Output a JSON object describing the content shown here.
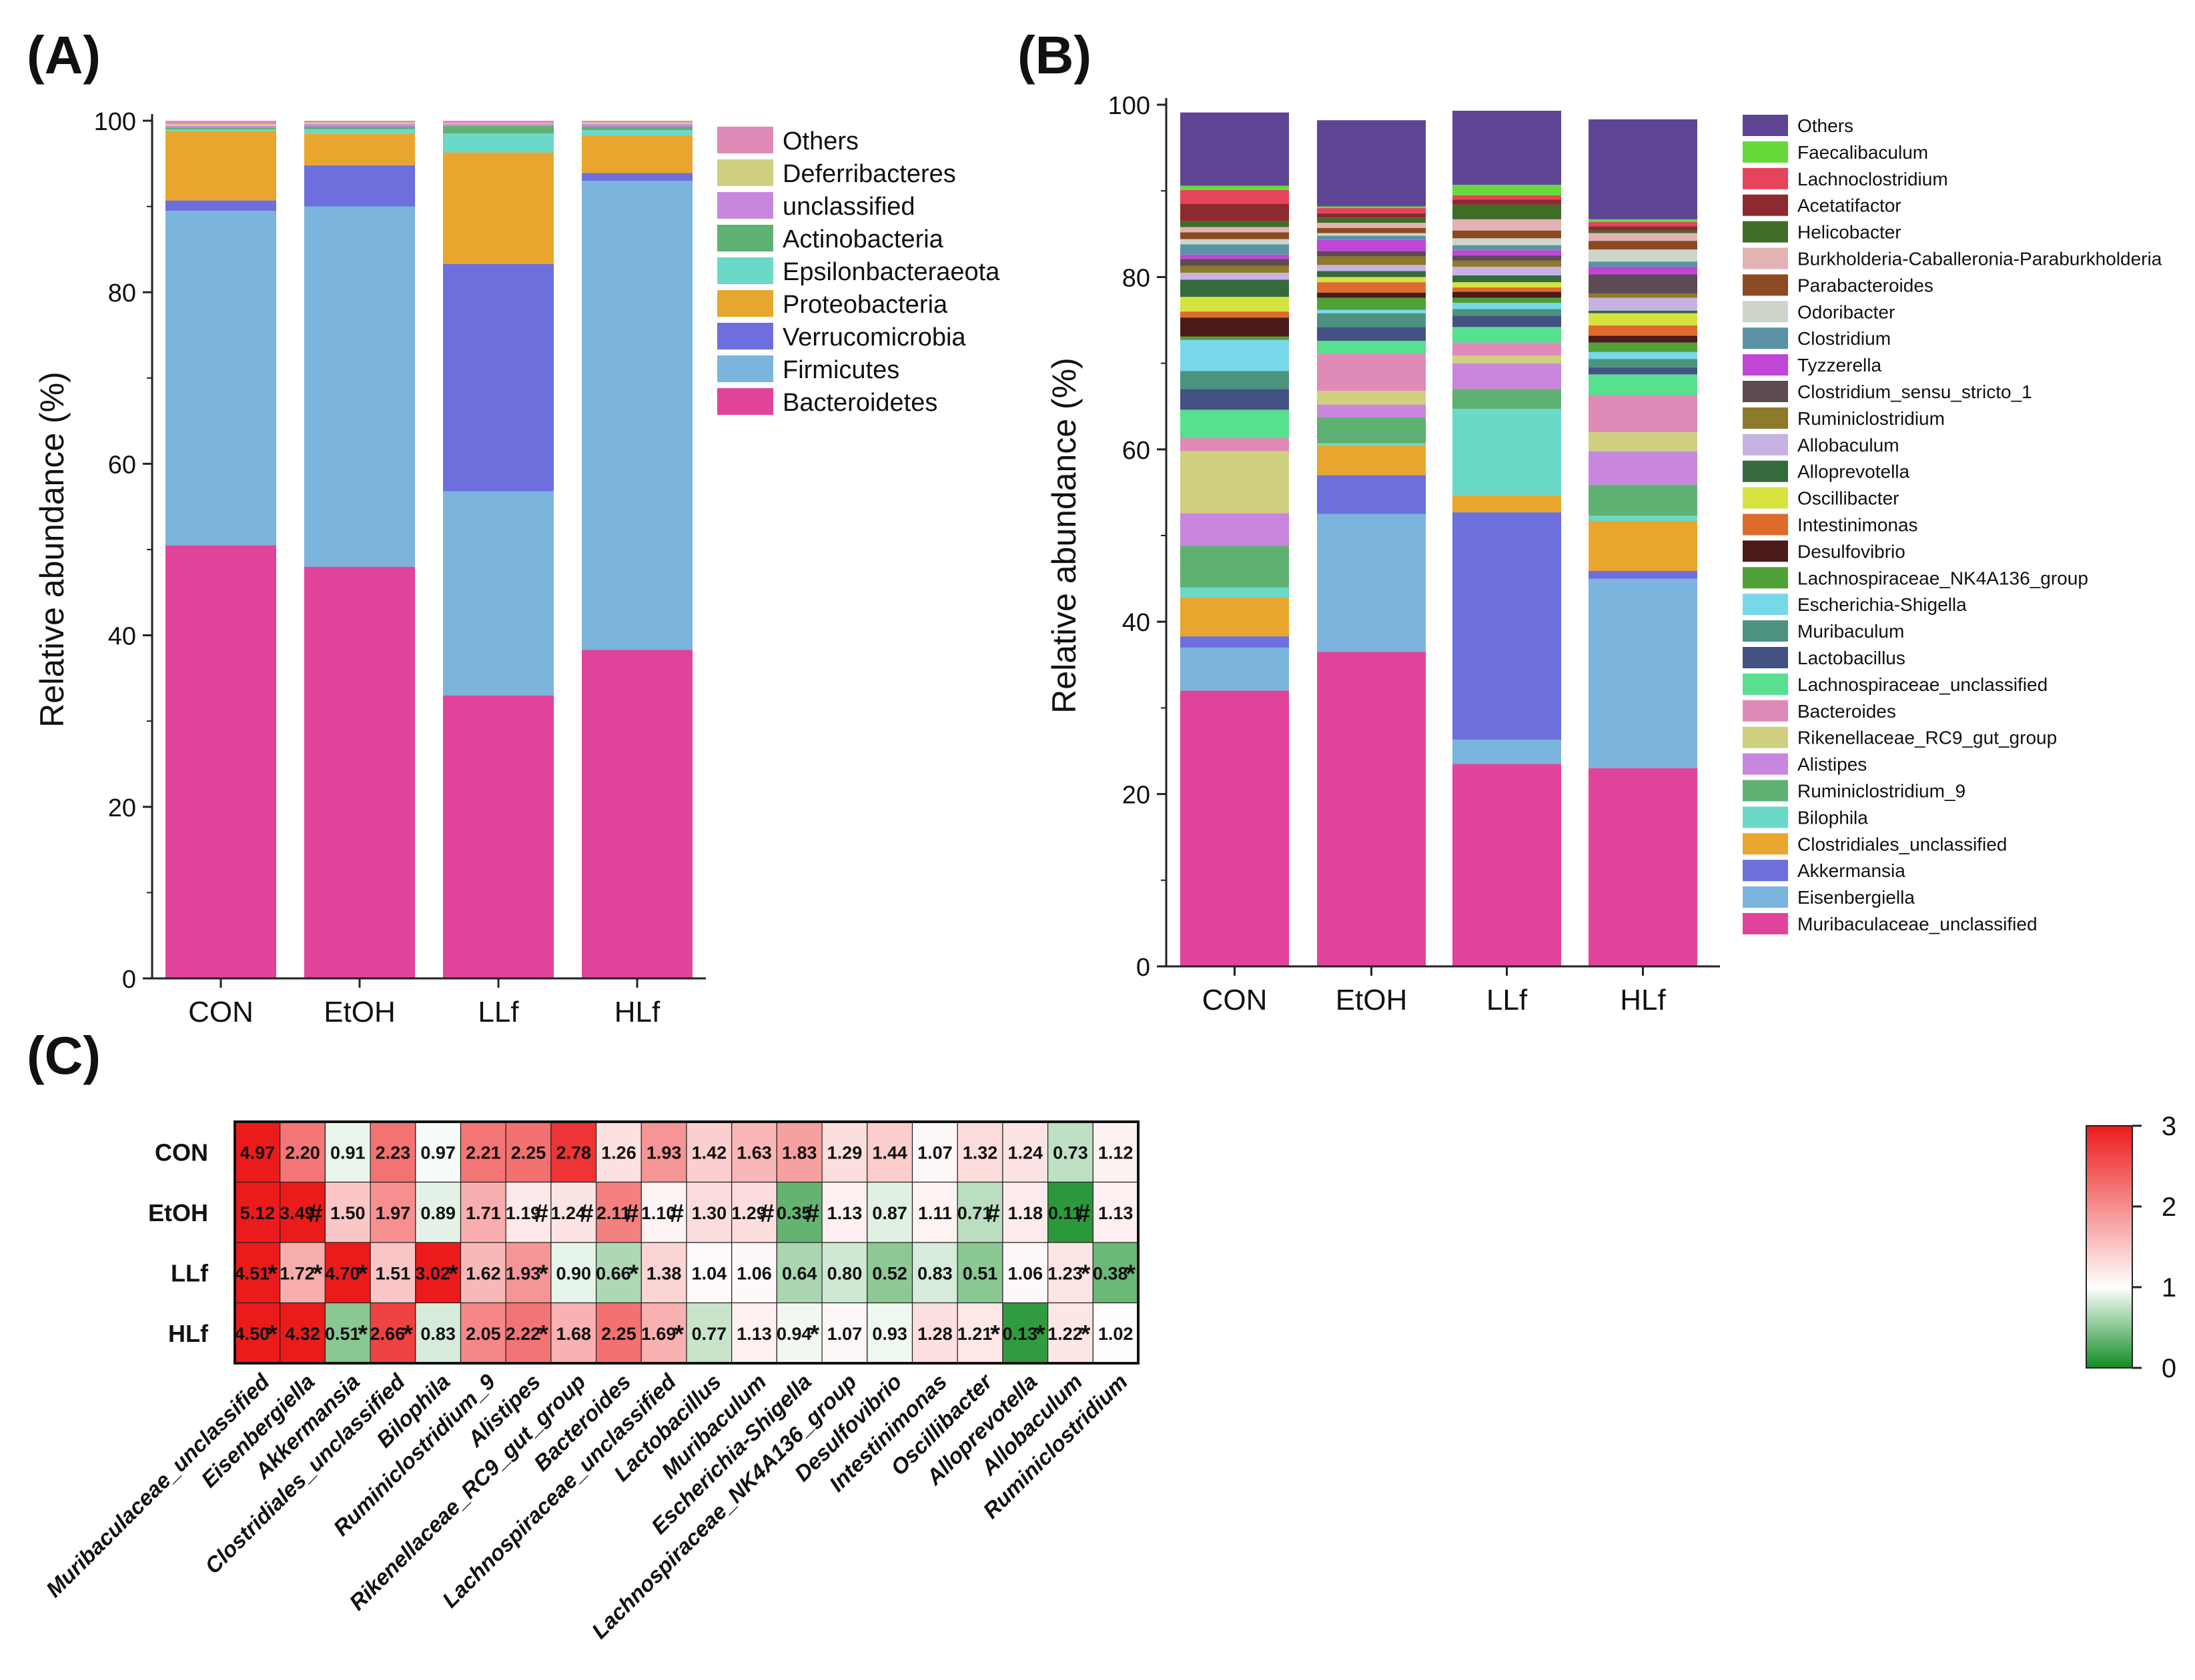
{
  "panels": {
    "a": "(A)",
    "b": "(B)",
    "c": "(C)"
  },
  "chart_data": [
    {
      "type": "bar",
      "stacked": true,
      "title": "(A)",
      "ylabel": "Relative abundance (%)",
      "xlabel": "",
      "ylim": [
        0,
        100
      ],
      "yticks": [
        0,
        20,
        40,
        60,
        80,
        100
      ],
      "categories": [
        "CON",
        "EtOH",
        "LLf",
        "HLf"
      ],
      "legend_position": "right",
      "series": [
        {
          "name": "Bacteroidetes",
          "color": "#e0449a",
          "values": [
            50.5,
            48.0,
            33.0,
            38.3
          ]
        },
        {
          "name": "Firmicutes",
          "color": "#7bb4dc",
          "values": [
            39.0,
            42.0,
            23.8,
            54.7
          ]
        },
        {
          "name": "Verrucomicrobia",
          "color": "#6d6fdc",
          "values": [
            1.2,
            4.8,
            26.5,
            0.9
          ]
        },
        {
          "name": "Proteobacteria",
          "color": "#e9a62e",
          "values": [
            8.1,
            3.7,
            13.0,
            4.4
          ]
        },
        {
          "name": "Epsilonbacteraeota",
          "color": "#6ad9c7",
          "values": [
            0.2,
            0.5,
            2.2,
            0.6
          ]
        },
        {
          "name": "Actinobacteria",
          "color": "#5fb073",
          "values": [
            0.2,
            0.3,
            0.9,
            0.4
          ]
        },
        {
          "name": "unclassified",
          "color": "#c986dd",
          "values": [
            0.2,
            0.3,
            0.2,
            0.3
          ]
        },
        {
          "name": "Deferribacteres",
          "color": "#cfd080",
          "values": [
            0.2,
            0.2,
            0.1,
            0.2
          ]
        },
        {
          "name": "Others",
          "color": "#e08ab8",
          "values": [
            0.4,
            0.2,
            0.3,
            0.2
          ]
        }
      ]
    },
    {
      "type": "bar",
      "stacked": true,
      "title": "(B)",
      "ylabel": "Relative abundance (%)",
      "xlabel": "",
      "ylim": [
        0,
        100
      ],
      "yticks": [
        0,
        20,
        40,
        60,
        80,
        100
      ],
      "categories": [
        "CON",
        "EtOH",
        "LLf",
        "HLf"
      ],
      "legend_position": "right",
      "series": [
        {
          "name": "Muribaculaceae_unclassified",
          "color": "#e0449a",
          "values": [
            32.0,
            36.5,
            23.5,
            23.0
          ]
        },
        {
          "name": "Eisenbergiella",
          "color": "#7bb4dc",
          "values": [
            5.0,
            16.0,
            2.8,
            22.0
          ]
        },
        {
          "name": "Akkermansia",
          "color": "#6d6fdc",
          "values": [
            1.3,
            4.5,
            26.4,
            0.9
          ]
        },
        {
          "name": "Clostridiales_unclassified",
          "color": "#e9a62e",
          "values": [
            4.5,
            3.5,
            2.0,
            5.8
          ]
        },
        {
          "name": "Bilophila",
          "color": "#6ad9c7",
          "values": [
            1.2,
            0.2,
            10.0,
            0.6
          ]
        },
        {
          "name": "Ruminiclostridium_9",
          "color": "#5fb073",
          "values": [
            4.8,
            3.0,
            2.3,
            3.6
          ]
        },
        {
          "name": "Alistipes",
          "color": "#c986dd",
          "values": [
            3.8,
            1.5,
            3.0,
            3.9
          ]
        },
        {
          "name": "Rikenellaceae_RC9_gut_group",
          "color": "#cfd080",
          "values": [
            7.2,
            1.6,
            0.9,
            2.2
          ]
        },
        {
          "name": "Bacteroides",
          "color": "#e08ab8",
          "values": [
            1.5,
            4.3,
            1.5,
            4.3
          ]
        },
        {
          "name": "Lachnospiraceae_unclassified",
          "color": "#56e08f",
          "values": [
            3.3,
            1.5,
            1.8,
            2.4
          ]
        },
        {
          "name": "Lactobacillus",
          "color": "#435183",
          "values": [
            2.4,
            1.6,
            1.3,
            0.8
          ]
        },
        {
          "name": "Muribaculum",
          "color": "#4b937f",
          "values": [
            2.1,
            1.6,
            0.8,
            1.0
          ]
        },
        {
          "name": "Escherichia-Shigella",
          "color": "#77d8ea",
          "values": [
            3.6,
            0.4,
            0.7,
            0.8
          ]
        },
        {
          "name": "Lachnospiraceae_NK4A136_group",
          "color": "#4fa037",
          "values": [
            0.4,
            1.4,
            0.6,
            1.1
          ]
        },
        {
          "name": "Desulfovibrio",
          "color": "#4b1b1b",
          "values": [
            2.2,
            0.6,
            0.7,
            0.8
          ]
        },
        {
          "name": "Intestinimonas",
          "color": "#de6b2b",
          "values": [
            0.7,
            1.2,
            0.5,
            1.2
          ]
        },
        {
          "name": "Oscillibacter",
          "color": "#d6e240",
          "values": [
            1.7,
            0.6,
            0.6,
            1.4
          ]
        },
        {
          "name": "Alloprevotella",
          "color": "#356a3c",
          "values": [
            2.0,
            0.7,
            0.8,
            0.3
          ]
        },
        {
          "name": "Allobaculum",
          "color": "#c7b2e4",
          "values": [
            0.8,
            0.7,
            1.0,
            1.5
          ]
        },
        {
          "name": "Ruminiclostridium",
          "color": "#8d7a2a",
          "values": [
            0.8,
            1.0,
            0.7,
            0.5
          ]
        },
        {
          "name": "Clostridium_sensu_stricto_1",
          "color": "#5d4a53",
          "values": [
            0.8,
            0.6,
            0.6,
            2.2
          ]
        },
        {
          "name": "Tyzzerella",
          "color": "#c046d6",
          "values": [
            0.5,
            1.3,
            0.6,
            0.9
          ]
        },
        {
          "name": "Clostridium",
          "color": "#5a93a4",
          "values": [
            1.2,
            0.5,
            0.6,
            0.6
          ]
        },
        {
          "name": "Odoribacter",
          "color": "#cdd5cb",
          "values": [
            0.6,
            0.3,
            0.8,
            1.4
          ]
        },
        {
          "name": "Parabacteroides",
          "color": "#8a4b22",
          "values": [
            0.8,
            0.6,
            0.9,
            1.0
          ]
        },
        {
          "name": "Burkholderia-Caballeronia-Paraburkholderia",
          "color": "#e3b3b3",
          "values": [
            0.6,
            0.6,
            1.3,
            0.9
          ]
        },
        {
          "name": "Helicobacter",
          "color": "#3f6d28",
          "values": [
            0.7,
            0.6,
            1.7,
            0.3
          ]
        },
        {
          "name": "Acetatifactor",
          "color": "#8c2a2f",
          "values": [
            2.0,
            0.5,
            0.6,
            0.5
          ]
        },
        {
          "name": "Lachnoclostridium",
          "color": "#e5445a",
          "values": [
            1.6,
            0.6,
            0.5,
            0.5
          ]
        },
        {
          "name": "Faecalibaculum",
          "color": "#66da3b",
          "values": [
            0.5,
            0.2,
            1.2,
            0.3
          ]
        },
        {
          "name": "Others",
          "color": "#5e4594",
          "values": [
            8.5,
            10.0,
            8.6,
            11.6
          ]
        }
      ]
    },
    {
      "type": "heatmap",
      "title": "(C)",
      "rows": [
        "CON",
        "EtOH",
        "LLf",
        "HLf"
      ],
      "columns": [
        "Muribaculaceae_unclassified",
        "Eisenbergiella",
        "Akkermansia",
        "Clostridiales_unclassified",
        "Bilophila",
        "Ruminiclostridium_9",
        "Alistipes",
        "Rikenellaceae_RC9_gut_group",
        "Bacteroides",
        "Lachnospiraceae_unclassified",
        "Lactobacillus",
        "Muribaculum",
        "Escherichia-Shigella",
        "Lachnospiraceae_NK4A136_group",
        "Desulfovibrio",
        "Intestinimonas",
        "Oscillibacter",
        "Alloprevotella",
        "Allobaculum",
        "Ruminiclostridium"
      ],
      "values": [
        [
          4.97,
          2.2,
          0.91,
          2.23,
          0.97,
          2.21,
          2.25,
          2.78,
          1.26,
          1.93,
          1.42,
          1.63,
          1.83,
          1.29,
          1.44,
          1.07,
          1.32,
          1.24,
          0.73,
          1.12
        ],
        [
          5.12,
          3.49,
          1.5,
          1.97,
          0.89,
          1.71,
          1.19,
          1.24,
          2.11,
          1.1,
          1.3,
          1.29,
          0.35,
          1.13,
          0.87,
          1.11,
          0.71,
          1.18,
          0.11,
          1.13
        ],
        [
          4.51,
          1.72,
          4.7,
          1.51,
          3.02,
          1.62,
          1.93,
          0.9,
          0.66,
          1.38,
          1.04,
          1.06,
          0.64,
          0.8,
          0.52,
          0.83,
          0.51,
          1.06,
          1.23,
          0.38
        ],
        [
          4.5,
          4.32,
          0.51,
          2.66,
          0.83,
          2.05,
          2.22,
          1.68,
          2.25,
          1.69,
          0.77,
          1.13,
          0.94,
          1.07,
          0.93,
          1.28,
          1.21,
          0.13,
          1.22,
          1.02
        ]
      ],
      "labels": [
        [
          "4.97",
          "2.20",
          "0.91",
          "2.23",
          "0.97",
          "2.21",
          "2.25",
          "2.78",
          "1.26",
          "1.93",
          "1.42",
          "1.63",
          "1.83",
          "1.29",
          "1.44",
          "1.07",
          "1.32",
          "1.24",
          "0.73",
          "1.12"
        ],
        [
          "5.12",
          "3.49",
          "1.50",
          "1.97",
          "0.89",
          "1.71",
          "1.19",
          "1.24",
          "2.11",
          "1.10",
          "1.30",
          "1.29",
          "0.35",
          "1.13",
          "0.87",
          "1.11",
          "0.71",
          "1.18",
          "0.11",
          "1.13"
        ],
        [
          "4.51",
          "1.72",
          "4.70",
          "1.51",
          "3.02",
          "1.62",
          "1.93",
          "0.90",
          "0.66",
          "1.38",
          "1.04",
          "1.06",
          "0.64",
          "0.80",
          "0.52",
          "0.83",
          "0.51",
          "1.06",
          "1.23",
          "0.38"
        ],
        [
          "4.50",
          "4.32",
          "0.51",
          "2.66",
          "0.83",
          "2.05",
          "2.22",
          "1.68",
          "2.25",
          "1.69",
          "0.77",
          "1.13",
          "0.94",
          "1.07",
          "0.93",
          "1.28",
          "1.21",
          "0.13",
          "1.22",
          "1.02"
        ]
      ],
      "marks": [
        [
          "",
          "",
          "",
          "",
          "",
          "",
          "",
          "",
          "",
          "",
          "",
          "",
          "",
          "",
          "",
          "",
          "",
          "",
          "",
          ""
        ],
        [
          "",
          "#",
          "",
          "",
          "",
          "",
          "#",
          "#",
          "#",
          "#",
          "",
          "#",
          "#",
          "",
          "",
          "",
          "#",
          "",
          "#",
          ""
        ],
        [
          "*",
          "*",
          "*",
          "",
          "*",
          "",
          "*",
          "",
          "*",
          "",
          "",
          "",
          "",
          "",
          "",
          "",
          "",
          "",
          "*",
          "*"
        ],
        [
          "*",
          "",
          "*",
          "*",
          "",
          "",
          "*",
          "",
          "",
          "*",
          "",
          "",
          "*",
          "",
          "",
          "",
          "*",
          "*",
          "*",
          ""
        ]
      ],
      "scale": {
        "min": 0,
        "max": 3,
        "ticks": [
          "3",
          "2",
          "1",
          "0"
        ],
        "low": "#118c23",
        "mid": "#ffffff",
        "high": "#ec1b1b"
      }
    }
  ]
}
